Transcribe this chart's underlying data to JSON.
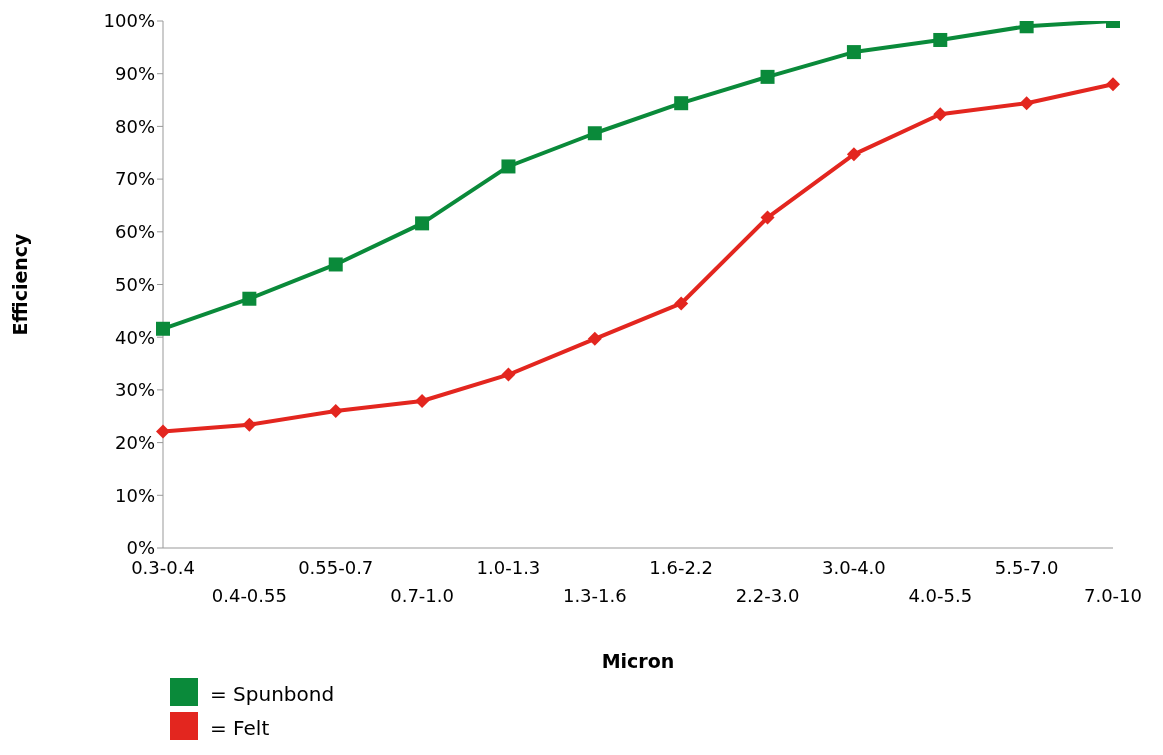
{
  "chart_data": {
    "type": "line",
    "xlabel": "Micron",
    "ylabel": "Efficiency",
    "categories": [
      "0.3-0.4",
      "0.4-0.55",
      "0.55-0.7",
      "0.7-1.0",
      "1.0-1.3",
      "1.3-1.6",
      "1.6-2.2",
      "2.2-3.0",
      "3.0-4.0",
      "4.0-5.5",
      "5.5-7.0",
      "7.0-10"
    ],
    "series": [
      {
        "name": "= Spunbond",
        "color": "#0a8a3a",
        "marker": "square",
        "values": [
          41.6,
          47.3,
          53.8,
          61.6,
          72.4,
          78.7,
          84.4,
          89.4,
          94.1,
          96.4,
          99.0,
          100
        ]
      },
      {
        "name": "= Felt",
        "color": "#e3261f",
        "marker": "diamond",
        "values": [
          22.1,
          23.4,
          26.0,
          27.9,
          32.9,
          39.7,
          46.4,
          62.7,
          74.7,
          82.3,
          84.4,
          88.0
        ]
      }
    ],
    "ylim": [
      0,
      100
    ],
    "yticks": [
      {
        "value": 0,
        "label": "0%"
      },
      {
        "value": 10,
        "label": "10%"
      },
      {
        "value": 20,
        "label": "20%"
      },
      {
        "value": 30,
        "label": "30%"
      },
      {
        "value": 40,
        "label": "40%"
      },
      {
        "value": 50,
        "label": "50%"
      },
      {
        "value": 60,
        "label": "60%"
      },
      {
        "value": 70,
        "label": "70%"
      },
      {
        "value": 80,
        "label": "80%"
      },
      {
        "value": 90,
        "label": "90%"
      },
      {
        "value": 100,
        "label": "100%"
      }
    ],
    "grid": false,
    "legend": "bottom left",
    "line_style": "solid"
  }
}
